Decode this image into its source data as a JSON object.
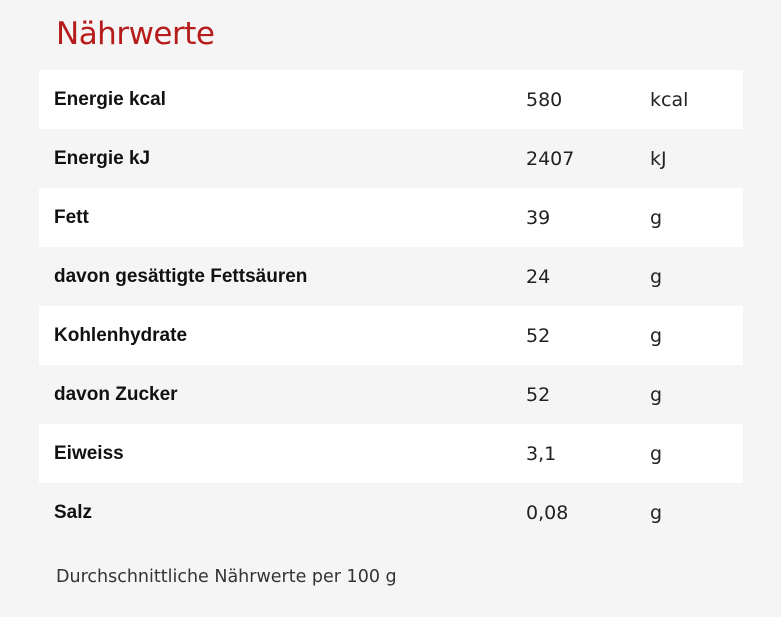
{
  "title": "Nährwerte",
  "colors": {
    "title": "#b71c1c",
    "background": "#f5f5f5",
    "row_highlight": "#ffffff"
  },
  "rows": [
    {
      "label": "Energie kcal",
      "value": "580",
      "unit": "kcal"
    },
    {
      "label": "Energie kJ",
      "value": "2407",
      "unit": "kJ"
    },
    {
      "label": "Fett",
      "value": "39",
      "unit": "g"
    },
    {
      "label": "davon gesättigte Fettsäuren",
      "value": "24",
      "unit": "g"
    },
    {
      "label": "Kohlenhydrate",
      "value": "52",
      "unit": "g"
    },
    {
      "label": "davon Zucker",
      "value": "52",
      "unit": "g"
    },
    {
      "label": "Eiweiss",
      "value": "3,1",
      "unit": "g"
    },
    {
      "label": "Salz",
      "value": "0,08",
      "unit": "g"
    }
  ],
  "footnote": "Durchschnittliche Nährwerte per 100 g"
}
